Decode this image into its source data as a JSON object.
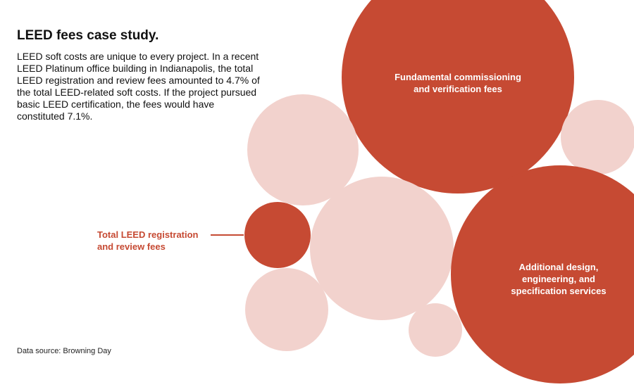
{
  "title": "LEED fees case study.",
  "description": "LEED soft costs are unique to every project. In a recent LEED Platinum office building in Indianapolis, the total LEED registration and review fees amounted to 4.7% of the total LEED-related soft costs. If the project pursued basic LEED certification, the fees would have constituted 7.1%.",
  "source": "Data source: Browning Day",
  "colors": {
    "highlight": "#c64a33",
    "muted": "#f2d2cd",
    "text": "#111111",
    "callout": "#c64a33"
  },
  "chart_data": {
    "type": "bubble",
    "title": "LEED fees case study.",
    "value_labels_shown": false,
    "bubbles": [
      {
        "id": "fundamental-commissioning",
        "label": [
          "Fundamental commissioning",
          "and verification fees"
        ],
        "highlighted": true,
        "label_position": "inside"
      },
      {
        "id": "additional-design",
        "label": [
          "Additional design,",
          "engineering, and",
          "specification services"
        ],
        "highlighted": true,
        "label_position": "inside"
      },
      {
        "id": "registration-review",
        "label": [
          "Total LEED registration",
          "and review fees"
        ],
        "highlighted": true,
        "label_position": "callout-left"
      },
      {
        "id": "other-1",
        "label": [],
        "highlighted": false
      },
      {
        "id": "other-2",
        "label": [],
        "highlighted": false
      },
      {
        "id": "other-3",
        "label": [],
        "highlighted": false
      },
      {
        "id": "other-4",
        "label": [],
        "highlighted": false
      },
      {
        "id": "other-5",
        "label": [],
        "highlighted": false
      }
    ]
  }
}
